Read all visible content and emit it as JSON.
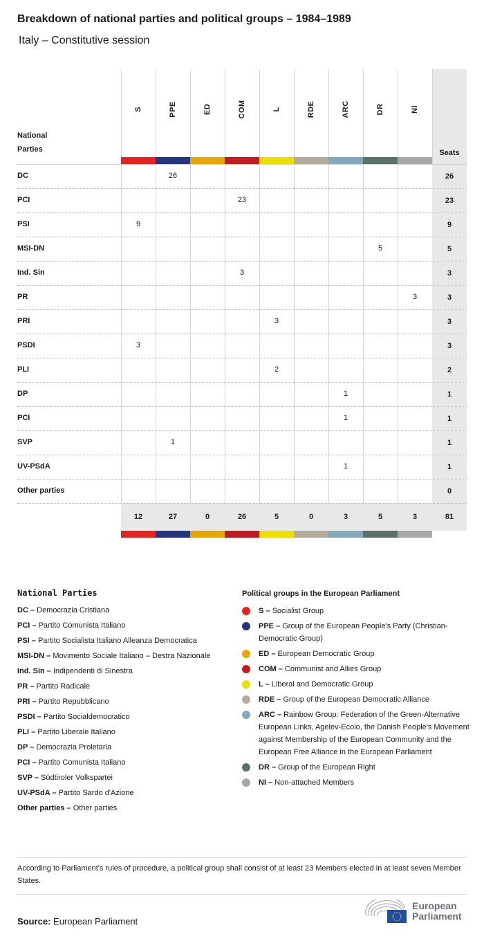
{
  "title": "Breakdown of national parties and political groups – 1984–1989",
  "subtitle": "Italy – Constitutive session",
  "table": {
    "row_header": "National Parties",
    "seats_header": "Seats",
    "groups": [
      {
        "code": "S",
        "color": "#e52421"
      },
      {
        "code": "PPE",
        "color": "#26357e"
      },
      {
        "code": "ED",
        "color": "#e8a600"
      },
      {
        "code": "COM",
        "color": "#c31b1f"
      },
      {
        "code": "L",
        "color": "#ede000"
      },
      {
        "code": "RDE",
        "color": "#b4aa9c"
      },
      {
        "code": "ARC",
        "color": "#83a9bf"
      },
      {
        "code": "DR",
        "color": "#5a7269"
      },
      {
        "code": "NI",
        "color": "#a8a8a8"
      }
    ],
    "rows": [
      {
        "party": "DC",
        "values": [
          "",
          "26",
          "",
          "",
          "",
          "",
          "",
          "",
          ""
        ],
        "seats": "26"
      },
      {
        "party": "PCI",
        "values": [
          "",
          "",
          "",
          "23",
          "",
          "",
          "",
          "",
          ""
        ],
        "seats": "23"
      },
      {
        "party": "PSI",
        "values": [
          "9",
          "",
          "",
          "",
          "",
          "",
          "",
          "",
          ""
        ],
        "seats": "9"
      },
      {
        "party": "MSI-DN",
        "values": [
          "",
          "",
          "",
          "",
          "",
          "",
          "",
          "5",
          ""
        ],
        "seats": "5"
      },
      {
        "party": "Ind. Sin",
        "values": [
          "",
          "",
          "",
          "3",
          "",
          "",
          "",
          "",
          ""
        ],
        "seats": "3"
      },
      {
        "party": "PR",
        "values": [
          "",
          "",
          "",
          "",
          "",
          "",
          "",
          "",
          "3"
        ],
        "seats": "3"
      },
      {
        "party": "PRI",
        "values": [
          "",
          "",
          "",
          "",
          "3",
          "",
          "",
          "",
          ""
        ],
        "seats": "3"
      },
      {
        "party": "PSDI",
        "values": [
          "3",
          "",
          "",
          "",
          "",
          "",
          "",
          "",
          ""
        ],
        "seats": "3"
      },
      {
        "party": "PLI",
        "values": [
          "",
          "",
          "",
          "",
          "2",
          "",
          "",
          "",
          ""
        ],
        "seats": "2"
      },
      {
        "party": "DP",
        "values": [
          "",
          "",
          "",
          "",
          "",
          "",
          "1",
          "",
          ""
        ],
        "seats": "1"
      },
      {
        "party": "PCI",
        "values": [
          "",
          "",
          "",
          "",
          "",
          "",
          "1",
          "",
          ""
        ],
        "seats": "1"
      },
      {
        "party": "SVP",
        "values": [
          "",
          "1",
          "",
          "",
          "",
          "",
          "",
          "",
          ""
        ],
        "seats": "1"
      },
      {
        "party": "UV-PSdA",
        "values": [
          "",
          "",
          "",
          "",
          "",
          "",
          "1",
          "",
          ""
        ],
        "seats": "1"
      },
      {
        "party": "Other parties",
        "values": [
          "",
          "",
          "",
          "",
          "",
          "",
          "",
          "",
          ""
        ],
        "seats": "0"
      }
    ],
    "totals": [
      "12",
      "27",
      "0",
      "26",
      "5",
      "0",
      "3",
      "5",
      "3"
    ],
    "total_seats": "81"
  },
  "legend_parties": {
    "title": "National Parties",
    "items": [
      {
        "code": "DC",
        "name": "Democrazia Cristiana"
      },
      {
        "code": "PCI",
        "name": "Partito Comunista Italiano"
      },
      {
        "code": "PSI",
        "name": "Partito Socialista Italiano Alleanza Democratica"
      },
      {
        "code": "MSI-DN",
        "name": "Movimento Sociale Italiano – Destra Nazionale"
      },
      {
        "code": "Ind. Sin",
        "name": "Indipendenti di Sinestra"
      },
      {
        "code": "PR",
        "name": " Partito Radicale"
      },
      {
        "code": "PRI",
        "name": "Partito Repubblicano"
      },
      {
        "code": "PSDI",
        "name": "Partito Socialdemocratico"
      },
      {
        "code": "PLI",
        "name": "Partito Liberale Italiano"
      },
      {
        "code": "DP",
        "name": "Democrazia Proletaria"
      },
      {
        "code": "PCI",
        "name": "Partito Comunista Italiano"
      },
      {
        "code": "SVP",
        "name": "Südtiroler Volkspartei"
      },
      {
        "code": "UV-PSdA",
        "name": "Partito Sardo d'Azione"
      },
      {
        "code": "Other parties",
        "name": "Other parties"
      }
    ]
  },
  "legend_groups": {
    "title": "Political groups in the European Parliament",
    "items": [
      {
        "code": "S",
        "name": "Socialist Group",
        "color": "#e52421"
      },
      {
        "code": "PPE",
        "name": "Group of the European People's Party (Christian-Democratic Group)",
        "color": "#26357e"
      },
      {
        "code": "ED",
        "name": "European Democratic Group",
        "color": "#e8a600"
      },
      {
        "code": "COM",
        "name": "Communist and Allies Group",
        "color": "#c31b1f"
      },
      {
        "code": "L",
        "name": "Liberal and Democratic Group",
        "color": "#ede000"
      },
      {
        "code": "RDE",
        "name": "Group of the European Democratic Alliance",
        "color": "#b4aa9c"
      },
      {
        "code": "ARC",
        "name": "Rainbow Group: Federation of the Green-Alternative European Links, Agelev-Ecolo, the Danish People's Movement against Membership of the European Community and the European Free Alliance in the European Parliament",
        "color": "#83a9bf"
      },
      {
        "code": "DR",
        "name": "Group of the European Right",
        "color": "#5a7269"
      },
      {
        "code": "NI",
        "name": "Non-attached Members",
        "color": "#a8a8a8"
      }
    ]
  },
  "note": "According to Parliament's rules of procedure, a political group shall consist of at least 23 Members elected in at least seven Member States.",
  "source": {
    "label": "Source:",
    "value": "European Parliament"
  },
  "logo": {
    "text_line1": "European",
    "text_line2": "Parliament"
  }
}
